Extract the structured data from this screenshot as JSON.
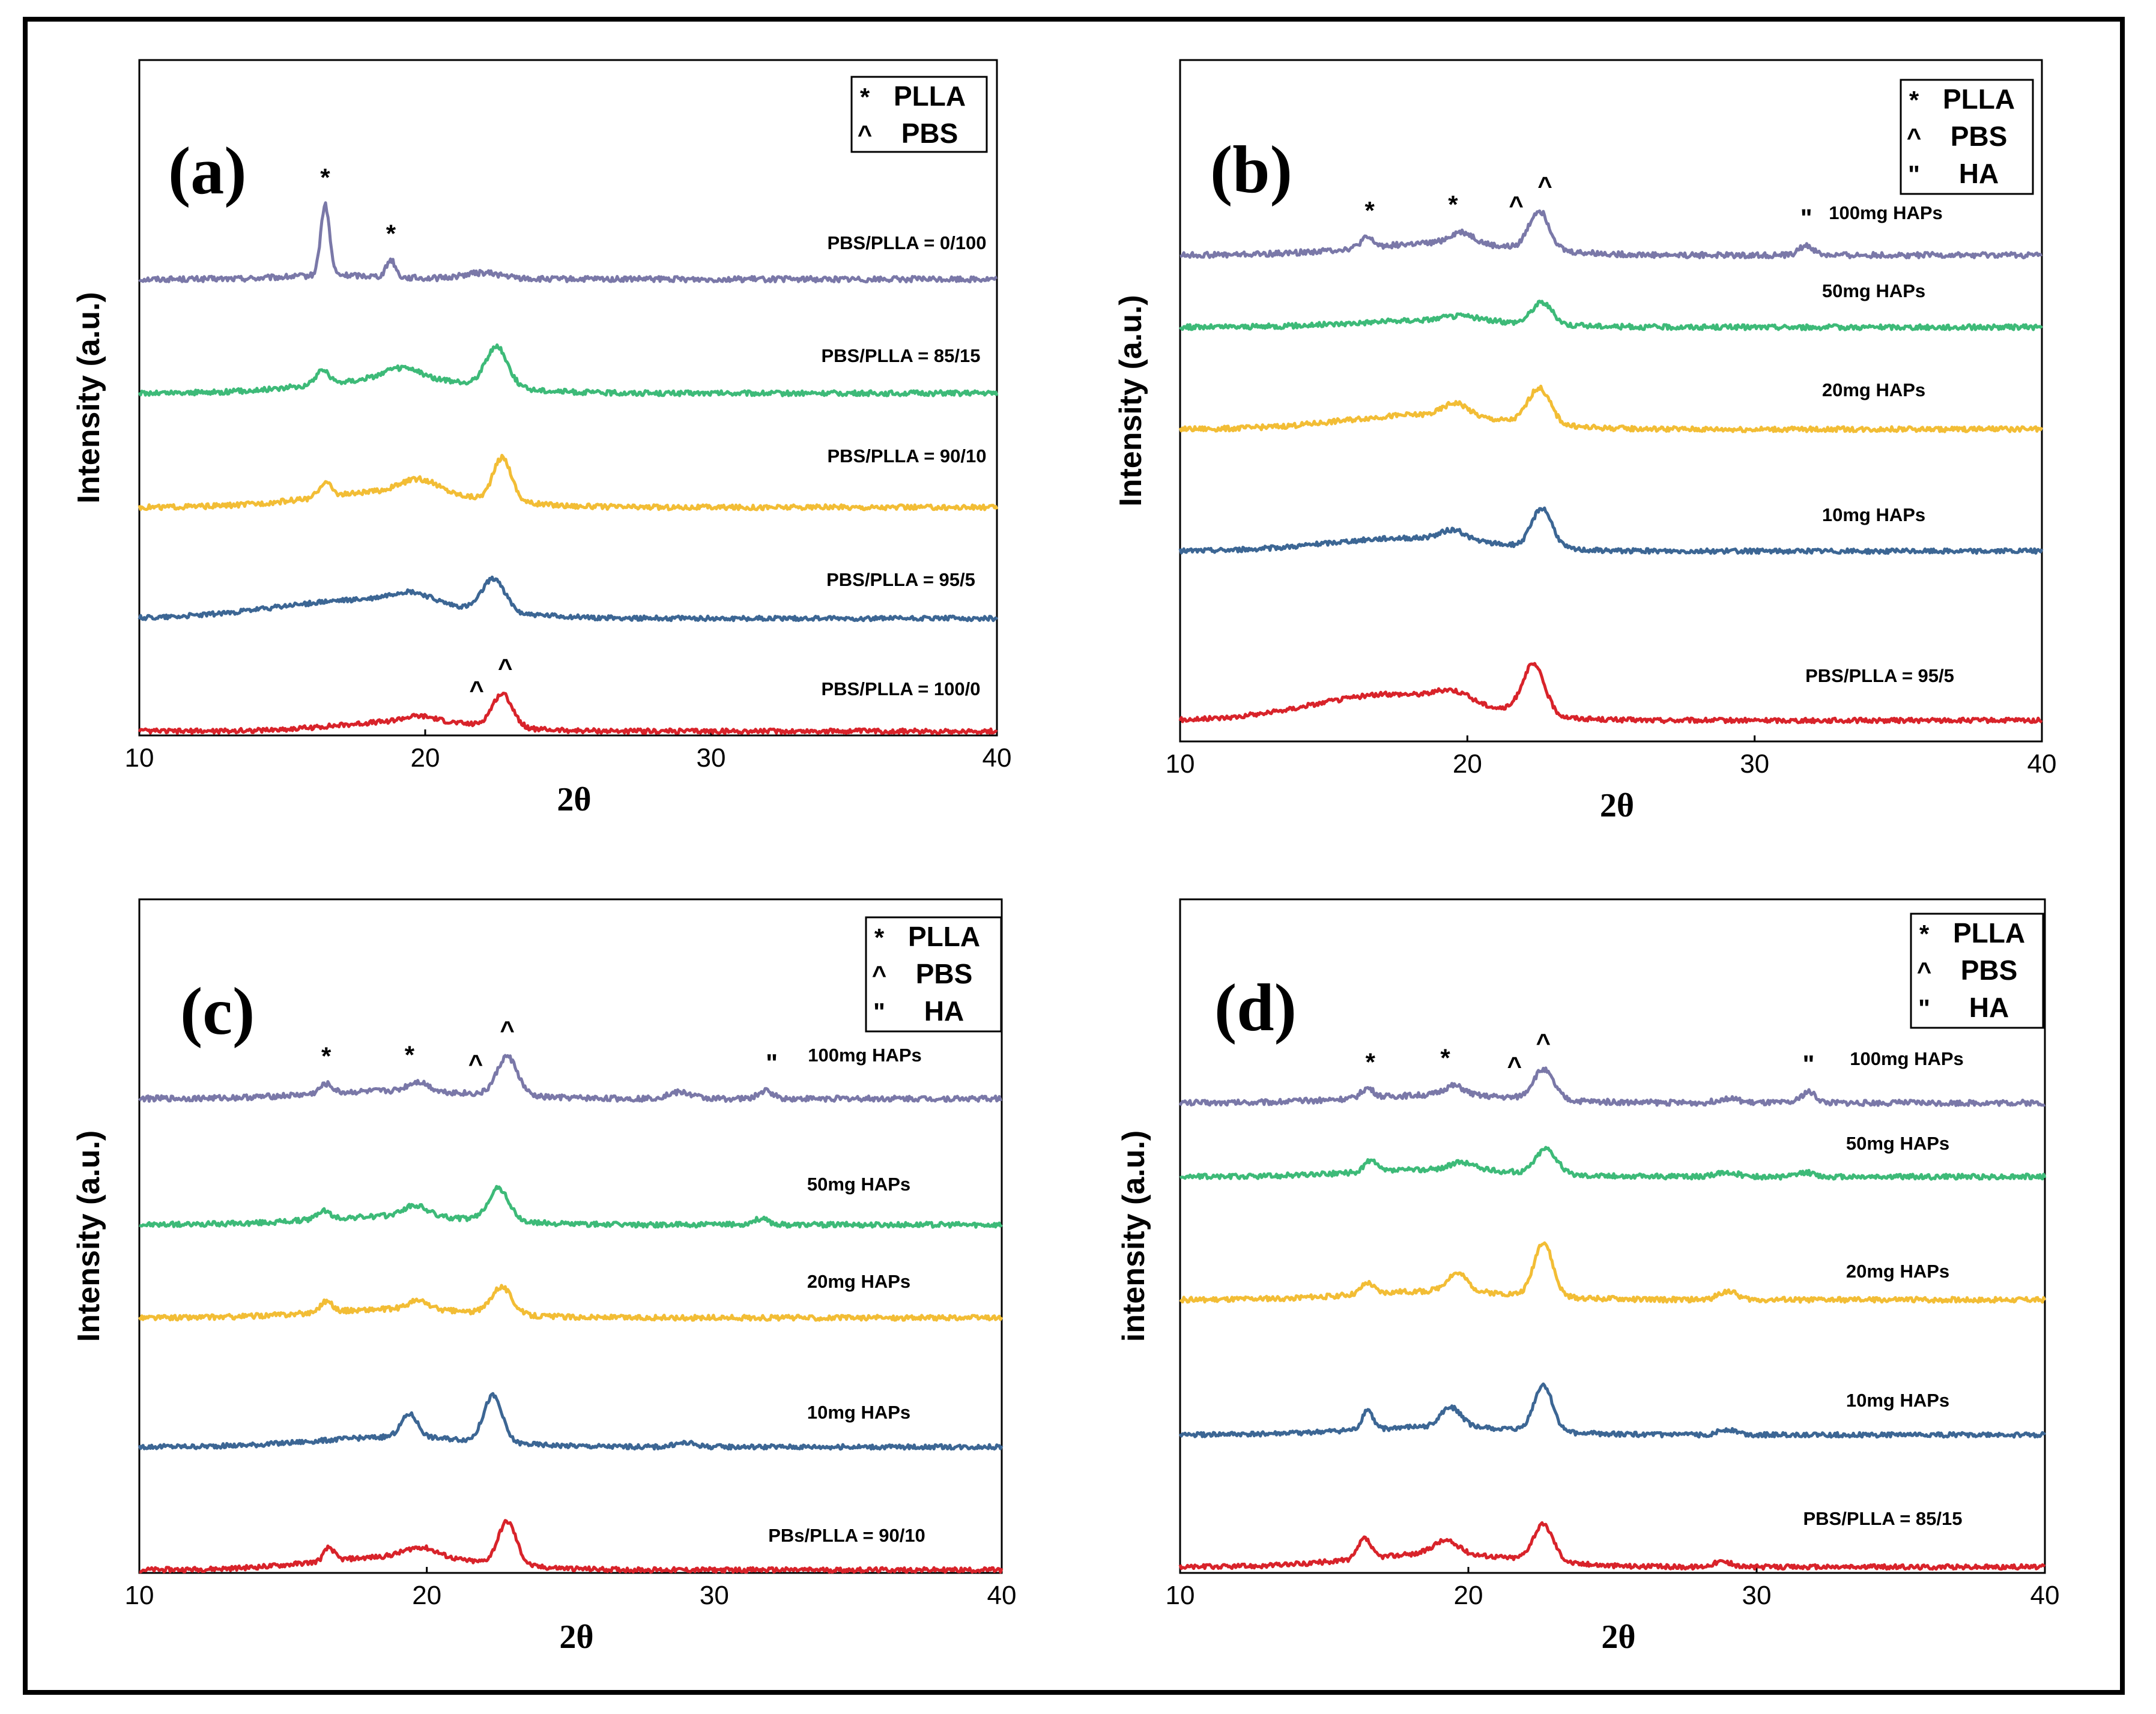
{
  "chart_data": [
    {
      "panel": "(a)",
      "type": "line",
      "xlabel": "2θ",
      "ylabel": "Intensity (a.u.)",
      "xlim": [
        10,
        40
      ],
      "xticks": [
        "10",
        "20",
        "30",
        "40"
      ],
      "legend": [
        {
          "symbol": "*",
          "label": "PLLA"
        },
        {
          "symbol": "^",
          "label": "PBS"
        }
      ],
      "series": [
        {
          "name": "PBS/PLLA = 0/100",
          "color": "#7a78a8",
          "baseline": 3,
          "peaks": [
            [
              16.5,
              0.9,
              0.22
            ],
            [
              18.8,
              0.22,
              0.22
            ],
            [
              22.0,
              0.08,
              1.0
            ]
          ],
          "hump": [
            [
              17,
              0.05,
              2.5
            ]
          ]
        },
        {
          "name": "PBS/PLLA = 85/15",
          "color": "#3dba78",
          "baseline": 2,
          "peaks": [
            [
              16.4,
              0.2,
              0.3
            ],
            [
              22.5,
              0.55,
              0.55
            ],
            [
              19.2,
              0.15,
              0.9
            ]
          ],
          "hump": [
            [
              19,
              0.2,
              4
            ]
          ]
        },
        {
          "name": "PBS/PLLA = 90/10",
          "color": "#f2bd35",
          "baseline": 1,
          "peaks": [
            [
              16.5,
              0.2,
              0.3
            ],
            [
              22.7,
              0.6,
              0.45
            ],
            [
              19.8,
              0.18,
              0.9
            ]
          ],
          "hump": [
            [
              19,
              0.22,
              4
            ]
          ]
        },
        {
          "name": "PBS/PLLA = 95/5",
          "color": "#3c6694",
          "baseline": 0,
          "peaks": [
            [
              22.4,
              0.5,
              0.55
            ],
            [
              19.5,
              0.15,
              1.0
            ]
          ],
          "hump": [
            [
              18,
              0.28,
              4.5
            ]
          ]
        },
        {
          "name": "PBS/PLLA = 100/0",
          "color": "#d8232a",
          "baseline": -1,
          "peaks": [
            [
              22.7,
              0.5,
              0.5
            ],
            [
              19.8,
              0.08,
              0.8
            ]
          ],
          "hump": [
            [
              19.5,
              0.15,
              3.5
            ]
          ]
        }
      ],
      "markers": [
        {
          "symbol": "*",
          "x": 16.5,
          "series": 0
        },
        {
          "symbol": "*",
          "x": 18.8,
          "series": 0
        },
        {
          "symbol": "^",
          "x": 21.8,
          "series": 4
        },
        {
          "symbol": "^",
          "x": 22.8,
          "series": 4
        }
      ]
    },
    {
      "panel": "(b)",
      "type": "line",
      "xlabel": "2θ",
      "ylabel": "Intensity (a.u.)",
      "xlim": [
        10,
        40
      ],
      "xticks": [
        "10",
        "20",
        "30",
        "40"
      ],
      "legend": [
        {
          "symbol": "*",
          "label": "PLLA"
        },
        {
          "symbol": "^",
          "label": "PBS"
        },
        {
          "symbol": "\"",
          "label": "HA"
        }
      ],
      "series": [
        {
          "name": "100mg HAPs",
          "color": "#7a78a8",
          "baseline": 3,
          "peaks": [
            [
              16.5,
              0.12,
              0.3
            ],
            [
              19.8,
              0.15,
              0.6
            ],
            [
              22.5,
              0.5,
              0.5
            ],
            [
              31.8,
              0.12,
              0.35
            ]
          ],
          "hump": [
            [
              19,
              0.15,
              4
            ]
          ]
        },
        {
          "name": "50mg HAPs",
          "color": "#3dba78",
          "baseline": 2,
          "peaks": [
            [
              22.6,
              0.3,
              0.5
            ],
            [
              19.8,
              0.06,
              0.8
            ]
          ],
          "hump": [
            [
              19,
              0.1,
              4
            ]
          ]
        },
        {
          "name": "20mg HAPs",
          "color": "#f2bd35",
          "baseline": 1,
          "peaks": [
            [
              19.6,
              0.18,
              0.6
            ],
            [
              22.5,
              0.5,
              0.55
            ]
          ],
          "hump": [
            [
              18.5,
              0.2,
              4
            ]
          ]
        },
        {
          "name": "10mg HAPs",
          "color": "#3c6694",
          "baseline": 0,
          "peaks": [
            [
              19.5,
              0.15,
              0.6
            ],
            [
              22.6,
              0.6,
              0.5
            ]
          ],
          "hump": [
            [
              18,
              0.2,
              4
            ]
          ]
        },
        {
          "name": "PBS/PLLA = 95/5",
          "color": "#d8232a",
          "baseline": -1,
          "peaks": [
            [
              22.3,
              0.75,
              0.55
            ],
            [
              19.5,
              0.15,
              0.8
            ]
          ],
          "hump": [
            [
              17.5,
              0.4,
              4
            ]
          ]
        }
      ],
      "markers": [
        {
          "symbol": "*",
          "x": 16.6,
          "series": 0
        },
        {
          "symbol": "*",
          "x": 19.5,
          "series": 0
        },
        {
          "symbol": "^",
          "x": 21.7,
          "series": 0
        },
        {
          "symbol": "^",
          "x": 22.7,
          "series": 0
        },
        {
          "symbol": "\"",
          "x": 31.8,
          "series": 0
        }
      ]
    },
    {
      "panel": "(c)",
      "type": "line",
      "xlabel": "2θ",
      "ylabel": "Intensity (a.u.)",
      "xlim": [
        10,
        40
      ],
      "xticks": [
        "10",
        "20",
        "30",
        "40"
      ],
      "legend": [
        {
          "symbol": "*",
          "label": "PLLA"
        },
        {
          "symbol": "^",
          "label": "PBS"
        },
        {
          "symbol": "\"",
          "label": "HA"
        }
      ],
      "series": [
        {
          "name": "100mg HAPs",
          "color": "#7a78a8",
          "baseline": 3,
          "peaks": [
            [
              16.5,
              0.12,
              0.3
            ],
            [
              19.7,
              0.12,
              0.5
            ],
            [
              22.8,
              0.5,
              0.5
            ],
            [
              28.8,
              0.08,
              0.6
            ],
            [
              31.8,
              0.1,
              0.35
            ]
          ],
          "hump": [
            [
              19,
              0.1,
              4
            ]
          ]
        },
        {
          "name": "50mg HAPs",
          "color": "#3dba78",
          "baseline": 2,
          "peaks": [
            [
              16.4,
              0.12,
              0.3
            ],
            [
              19.6,
              0.15,
              0.6
            ],
            [
              22.5,
              0.45,
              0.5
            ],
            [
              31.6,
              0.08,
              0.4
            ]
          ],
          "hump": [
            [
              19,
              0.12,
              4
            ]
          ]
        },
        {
          "name": "20mg HAPs",
          "color": "#f2bd35",
          "baseline": 1,
          "peaks": [
            [
              16.5,
              0.15,
              0.3
            ],
            [
              19.7,
              0.12,
              0.5
            ],
            [
              22.6,
              0.38,
              0.5
            ]
          ],
          "hump": [
            [
              19,
              0.12,
              4
            ]
          ]
        },
        {
          "name": "10mg HAPs",
          "color": "#3c6694",
          "baseline": 0,
          "peaks": [
            [
              19.4,
              0.35,
              0.4
            ],
            [
              22.3,
              0.7,
              0.45
            ],
            [
              29.0,
              0.06,
              0.5
            ]
          ],
          "hump": [
            [
              19,
              0.15,
              4
            ]
          ]
        },
        {
          "name": "PBs/PLLA = 90/10",
          "color": "#d8232a",
          "baseline": -1,
          "peaks": [
            [
              16.6,
              0.2,
              0.25
            ],
            [
              22.8,
              0.65,
              0.45
            ],
            [
              19.8,
              0.15,
              0.8
            ]
          ],
          "hump": [
            [
              19,
              0.2,
              4
            ]
          ]
        }
      ],
      "markers": [
        {
          "symbol": "*",
          "x": 16.5,
          "series": 0
        },
        {
          "symbol": "*",
          "x": 19.4,
          "series": 0
        },
        {
          "symbol": "^",
          "x": 21.7,
          "series": 0
        },
        {
          "symbol": "^",
          "x": 22.8,
          "series": 0
        },
        {
          "symbol": "\"",
          "x": 32.0,
          "series": 0
        }
      ]
    },
    {
      "panel": "(d)",
      "type": "line",
      "xlabel": "2θ",
      "ylabel": "intensity (a.u.)",
      "xlim": [
        10,
        40
      ],
      "xticks": [
        "10",
        "20",
        "30",
        "40"
      ],
      "legend": [
        {
          "symbol": "*",
          "label": "PLLA"
        },
        {
          "symbol": "^",
          "label": "PBS"
        },
        {
          "symbol": "\"",
          "label": "HA"
        }
      ],
      "series": [
        {
          "name": "100mg HAPs",
          "color": "#7a78a8",
          "baseline": 3,
          "peaks": [
            [
              16.5,
              0.12,
              0.3
            ],
            [
              19.5,
              0.12,
              0.5
            ],
            [
              22.6,
              0.38,
              0.5
            ],
            [
              29.0,
              0.06,
              0.5
            ],
            [
              31.8,
              0.14,
              0.35
            ]
          ],
          "hump": [
            [
              19,
              0.1,
              4
            ]
          ]
        },
        {
          "name": "50mg HAPs",
          "color": "#3dba78",
          "baseline": 2,
          "peaks": [
            [
              16.6,
              0.15,
              0.3
            ],
            [
              19.8,
              0.1,
              0.6
            ],
            [
              22.7,
              0.35,
              0.5
            ],
            [
              29.0,
              0.06,
              0.5
            ],
            [
              31.7,
              0.06,
              0.35
            ]
          ],
          "hump": [
            [
              19,
              0.1,
              4
            ]
          ]
        },
        {
          "name": "20mg HAPs",
          "color": "#f2bd35",
          "baseline": 1,
          "peaks": [
            [
              16.5,
              0.15,
              0.3
            ],
            [
              19.6,
              0.25,
              0.5
            ],
            [
              22.6,
              0.75,
              0.45
            ],
            [
              29.0,
              0.12,
              0.45
            ]
          ],
          "hump": [
            [
              19,
              0.12,
              4
            ]
          ]
        },
        {
          "name": "10mg HAPs",
          "color": "#3c6694",
          "baseline": 0,
          "peaks": [
            [
              16.5,
              0.3,
              0.25
            ],
            [
              19.4,
              0.3,
              0.5
            ],
            [
              22.6,
              0.7,
              0.45
            ],
            [
              29.0,
              0.08,
              0.45
            ]
          ],
          "hump": [
            [
              19,
              0.12,
              4
            ]
          ]
        },
        {
          "name": "PBS/PLLA = 85/15",
          "color": "#d8232a",
          "baseline": -1,
          "peaks": [
            [
              16.4,
              0.3,
              0.3
            ],
            [
              19.2,
              0.2,
              0.6
            ],
            [
              22.6,
              0.55,
              0.5
            ],
            [
              28.8,
              0.08,
              0.45
            ]
          ],
          "hump": [
            [
              19,
              0.2,
              4
            ]
          ]
        }
      ],
      "markers": [
        {
          "symbol": "*",
          "x": 16.6,
          "series": 0
        },
        {
          "symbol": "*",
          "x": 19.2,
          "series": 0
        },
        {
          "symbol": "^",
          "x": 21.6,
          "series": 0
        },
        {
          "symbol": "^",
          "x": 22.6,
          "series": 0
        },
        {
          "symbol": "\"",
          "x": 31.8,
          "series": 0
        }
      ]
    }
  ]
}
